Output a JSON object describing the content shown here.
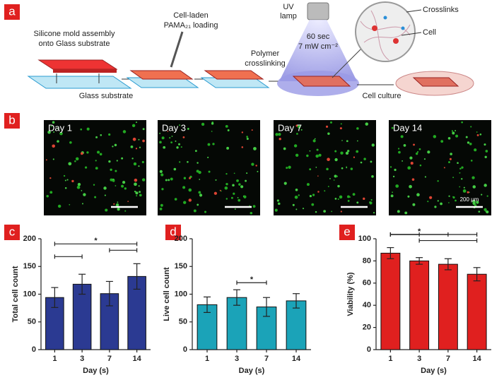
{
  "panel_labels": [
    "a",
    "b",
    "c",
    "d",
    "e"
  ],
  "schematic": {
    "step1": [
      "Silicone mold assembly",
      "onto Glass substrate"
    ],
    "step2": [
      "Cell-laden",
      "PAMA₂₁ loading"
    ],
    "substrate": "Glass substrate",
    "step3": [
      "Polymer",
      "crosslinking"
    ],
    "lamp": [
      "UV",
      "lamp"
    ],
    "dose": [
      "60 sec",
      "7 mW cm⁻²"
    ],
    "crosslinks": "Crosslinks",
    "cell": "Cell",
    "culture": "Cell culture"
  },
  "images": {
    "days": [
      "Day 1",
      "Day 3",
      "Day 7",
      "Day 14"
    ],
    "scale_bar": "200 μm"
  },
  "chart_data": [
    {
      "type": "bar",
      "categories": [
        "1",
        "3",
        "7",
        "14"
      ],
      "values": [
        94,
        118,
        101,
        132
      ],
      "errors": [
        18,
        18,
        22,
        23
      ],
      "color": "#2b3a92",
      "ylim": [
        0,
        200
      ],
      "yticks": [
        0,
        50,
        100,
        150,
        200
      ],
      "xlabel": "Day (s)",
      "ylabel": "Total cell count",
      "significance": [
        {
          "between": [
            "1",
            "3"
          ]
        },
        {
          "between": [
            "7",
            "14"
          ]
        },
        {
          "between": [
            "1",
            "14"
          ],
          "label": "*"
        }
      ]
    },
    {
      "type": "bar",
      "categories": [
        "1",
        "3",
        "7",
        "14"
      ],
      "values": [
        81,
        94,
        77,
        88
      ],
      "errors": [
        14,
        14,
        17,
        13
      ],
      "color": "#1ba3b8",
      "ylim": [
        0,
        200
      ],
      "yticks": [
        0,
        50,
        100,
        150,
        200
      ],
      "xlabel": "Day (s)",
      "ylabel": "Live cell count",
      "significance": [
        {
          "between": [
            "3",
            "7"
          ],
          "label": "*"
        }
      ]
    },
    {
      "type": "bar",
      "categories": [
        "1",
        "3",
        "7",
        "14"
      ],
      "values": [
        87,
        80,
        77,
        68
      ],
      "errors": [
        5,
        3,
        5,
        6
      ],
      "color": "#e0201f",
      "ylim": [
        0,
        100
      ],
      "yticks": [
        0,
        20,
        40,
        60,
        80,
        100
      ],
      "xlabel": "Day (s)",
      "ylabel": "Viability (%)",
      "significance": [
        {
          "between": [
            "3",
            "14"
          ]
        },
        {
          "between": [
            "1",
            "7"
          ],
          "label": "*"
        },
        {
          "between": [
            "1",
            "3"
          ]
        },
        {
          "between": [
            "1",
            "14"
          ]
        }
      ]
    }
  ]
}
